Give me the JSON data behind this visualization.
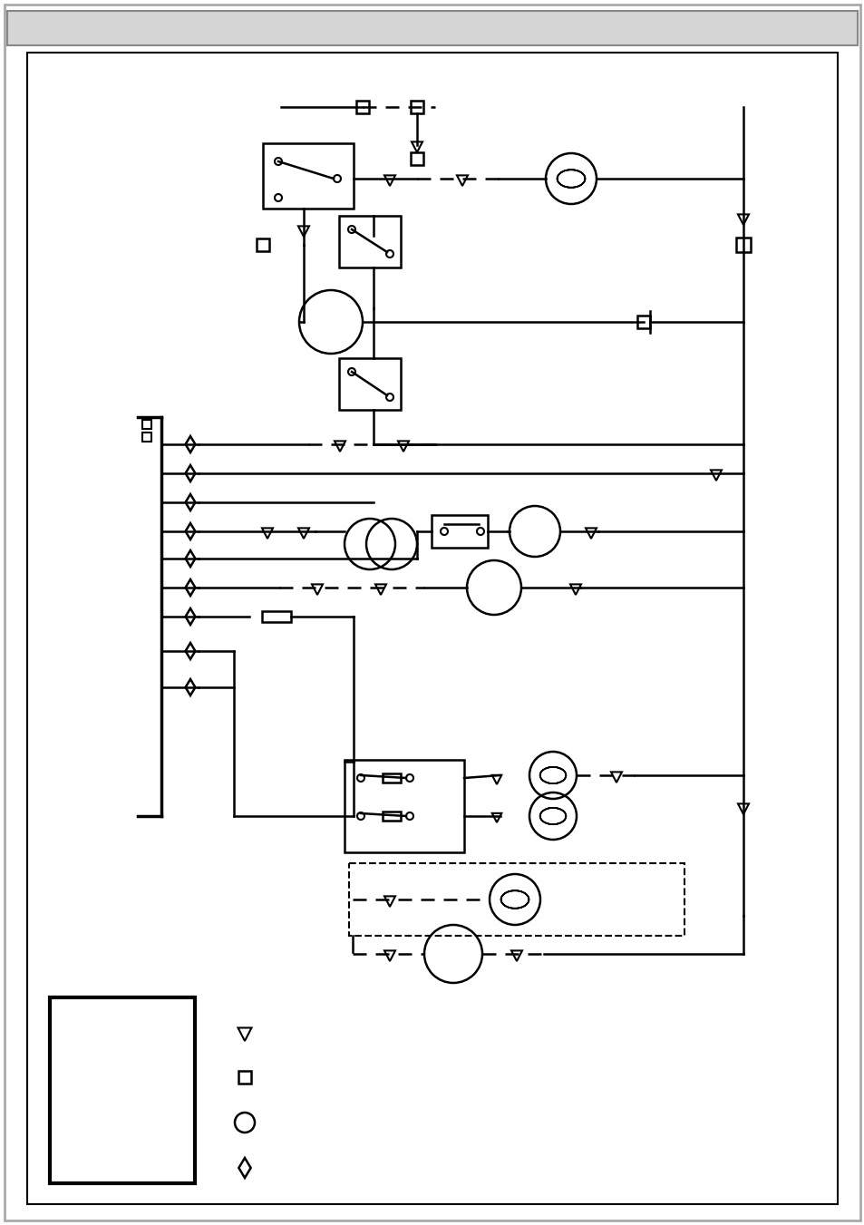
{
  "bg_color": "#ffffff",
  "lc": "#000000",
  "figsize": [
    9.54,
    13.51
  ],
  "dpi": 100
}
